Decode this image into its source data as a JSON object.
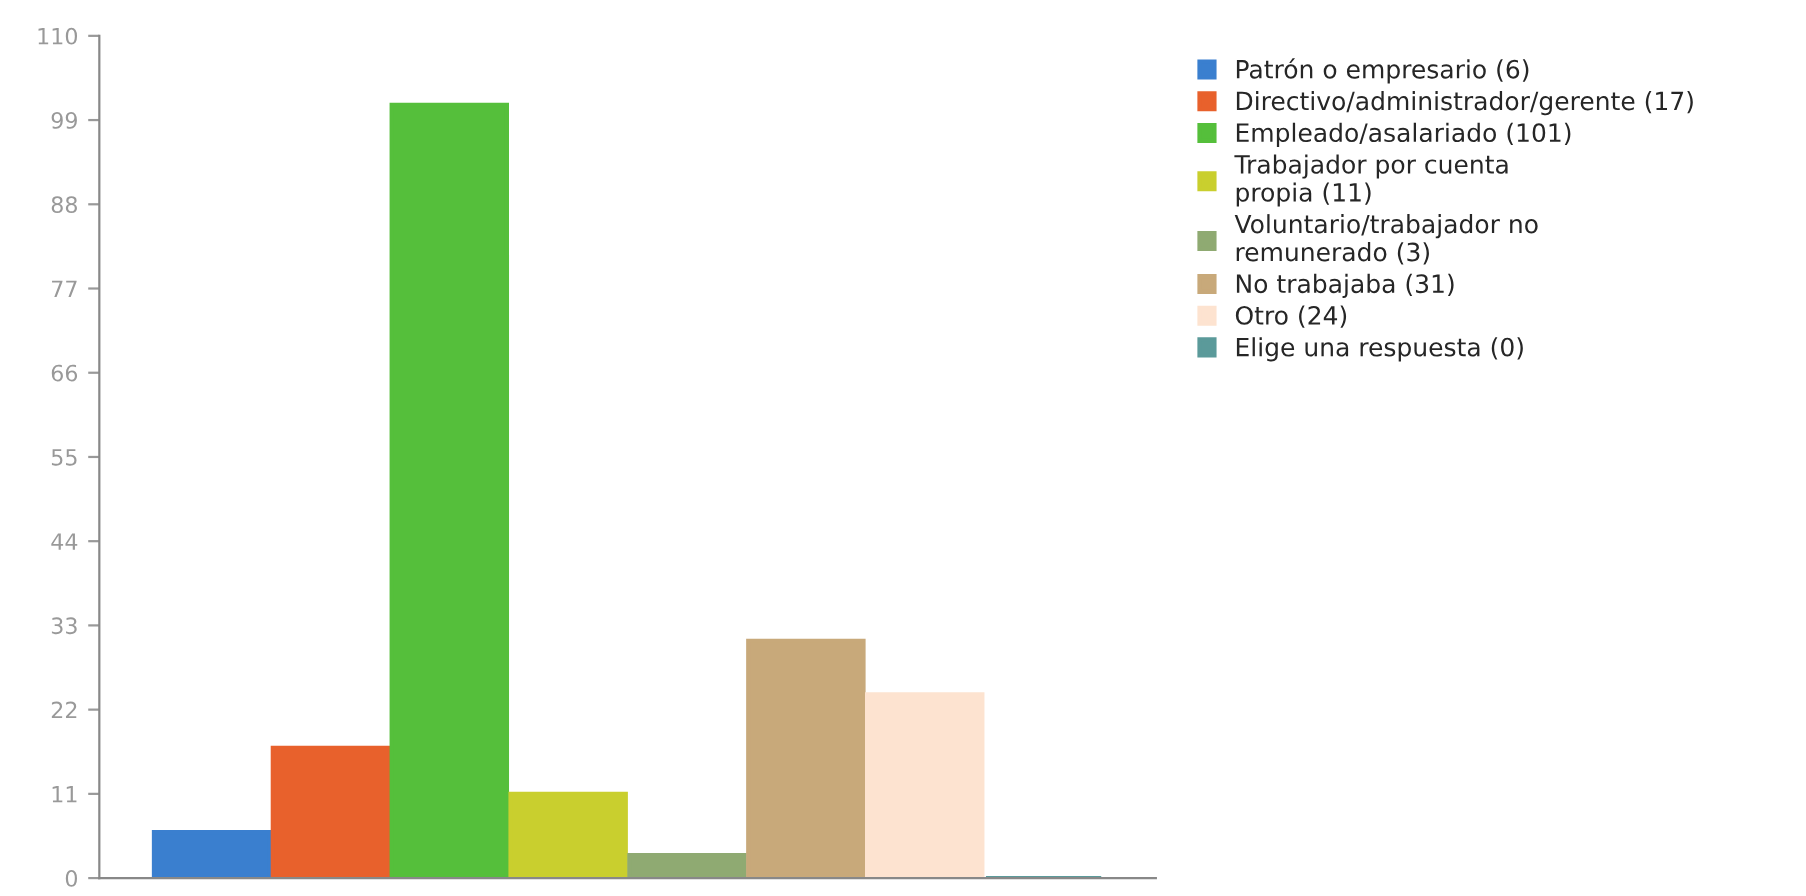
{
  "chart_data": {
    "type": "bar",
    "categories": [
      null
    ],
    "ylim": [
      0,
      110
    ],
    "yticks": [
      0,
      11,
      22,
      33,
      44,
      55,
      66,
      77,
      88,
      99,
      110
    ],
    "grid": false,
    "legend": "top right",
    "series": [
      {
        "name": "Patrón o empresario (6)",
        "color": "#3a7fcf",
        "values": [
          6
        ]
      },
      {
        "name": "Directivo/administrador/gerente (17)",
        "color": "#e8612c",
        "values": [
          17
        ]
      },
      {
        "name": "Empleado/asalariado (101)",
        "color": "#55bf3b",
        "values": [
          101
        ]
      },
      {
        "name": "Trabajador por cuenta\npropia (11)",
        "color": "#c9cf2e",
        "values": [
          11
        ]
      },
      {
        "name": "Voluntario/trabajador no\nremunerado (3)",
        "color": "#8faa72",
        "values": [
          3
        ]
      },
      {
        "name": "No trabajaba (31)",
        "color": "#c8a97a",
        "values": [
          31
        ]
      },
      {
        "name": "Otro (24)",
        "color": "#fde3d0",
        "values": [
          24
        ]
      },
      {
        "name": "Elige una respuesta (0)",
        "color": "#5b9a9a",
        "values": [
          0
        ]
      }
    ]
  }
}
